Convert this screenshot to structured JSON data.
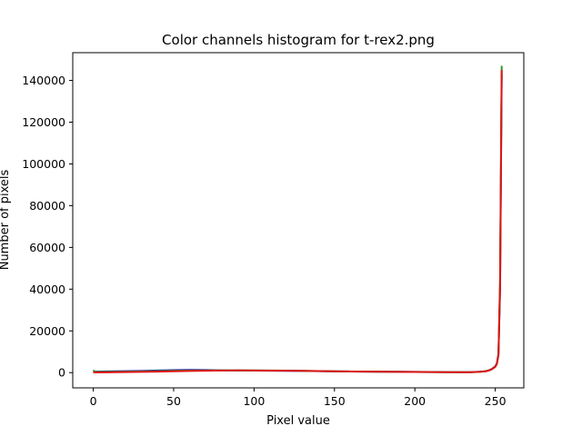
{
  "chart_data": {
    "type": "line",
    "title": "Color channels histogram for t-rex2.png",
    "xlabel": "Pixel value",
    "ylabel": "Number of pixels",
    "xlim": [
      -12.75,
      267.75
    ],
    "ylim": [
      -7300,
      153300
    ],
    "x_ticks": [
      0,
      50,
      100,
      150,
      200,
      250
    ],
    "y_ticks": [
      0,
      20000,
      40000,
      60000,
      80000,
      100000,
      120000,
      140000
    ],
    "grid": false,
    "series": [
      {
        "color": "#1f1fa8",
        "x": [
          0,
          1,
          10,
          20,
          30,
          40,
          50,
          60,
          70,
          80,
          90,
          100,
          110,
          120,
          130,
          140,
          150,
          160,
          170,
          180,
          190,
          200,
          210,
          220,
          230,
          235,
          240,
          244,
          246,
          248,
          250,
          251,
          252,
          253,
          254
        ],
        "y": [
          700,
          500,
          600,
          700,
          800,
          1000,
          1200,
          1300,
          1250,
          1100,
          1000,
          950,
          900,
          850,
          800,
          700,
          600,
          550,
          500,
          450,
          400,
          350,
          300,
          250,
          200,
          250,
          400,
          700,
          1100,
          1800,
          3000,
          4500,
          9000,
          40000,
          143000
        ]
      },
      {
        "color": "#2a9a2a",
        "x": [
          0,
          1,
          10,
          20,
          30,
          40,
          50,
          60,
          70,
          80,
          90,
          100,
          110,
          120,
          130,
          140,
          150,
          160,
          170,
          180,
          190,
          200,
          210,
          220,
          230,
          235,
          240,
          244,
          246,
          248,
          250,
          251,
          252,
          253,
          254
        ],
        "y": [
          1200,
          300,
          350,
          450,
          550,
          700,
          850,
          950,
          1000,
          1050,
          1100,
          1050,
          1000,
          950,
          850,
          750,
          650,
          550,
          480,
          420,
          380,
          330,
          280,
          230,
          180,
          220,
          380,
          650,
          1000,
          1700,
          2800,
          4200,
          8500,
          45000,
          147000
        ]
      },
      {
        "color": "#e01414",
        "x": [
          0,
          1,
          10,
          20,
          30,
          40,
          50,
          60,
          70,
          80,
          90,
          100,
          110,
          120,
          130,
          140,
          150,
          160,
          170,
          180,
          190,
          200,
          210,
          220,
          230,
          235,
          240,
          244,
          246,
          248,
          250,
          251,
          252,
          253,
          254
        ],
        "y": [
          200,
          100,
          150,
          250,
          350,
          500,
          650,
          800,
          900,
          1000,
          1050,
          1000,
          950,
          900,
          850,
          750,
          650,
          550,
          480,
          420,
          380,
          330,
          280,
          230,
          180,
          220,
          380,
          650,
          1000,
          1700,
          2800,
          4200,
          8500,
          42000,
          145000
        ]
      }
    ]
  }
}
